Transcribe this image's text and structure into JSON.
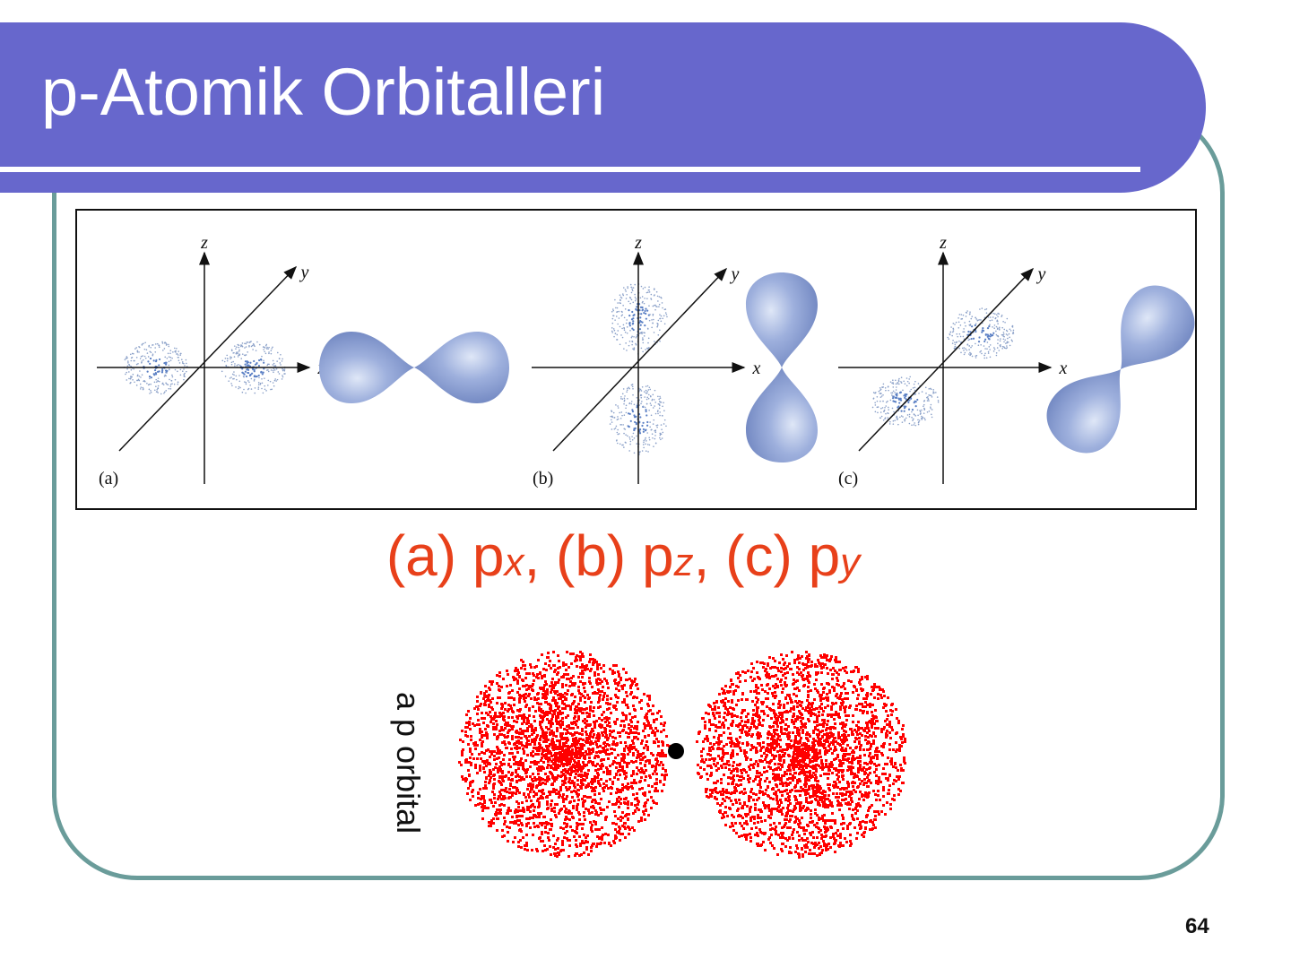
{
  "slide": {
    "title": "p-Atomik Orbitalleri",
    "page_number": "64",
    "colors": {
      "title_bar": "#6767cc",
      "frame": "#6a9c9a",
      "caption": "#e8401a",
      "cloud_red": "#ff0000",
      "lobe_blue": "#8fa3d6"
    }
  },
  "figure": {
    "panels": [
      {
        "label": "(a)",
        "axis_x": "x",
        "axis_y": "y",
        "axis_z": "z",
        "orientation": "x"
      },
      {
        "label": "(b)",
        "axis_x": "x",
        "axis_y": "y",
        "axis_z": "z",
        "orientation": "z"
      },
      {
        "label": "(c)",
        "axis_x": "x",
        "axis_y": "y",
        "axis_z": "z",
        "orientation": "y"
      }
    ]
  },
  "caption": {
    "a": "(a) p",
    "a_sub": "x",
    "b": ", (b) p",
    "b_sub": "z",
    "c": ", (c) p",
    "c_sub": "y"
  },
  "orbital_image": {
    "label": "a p orbital"
  }
}
